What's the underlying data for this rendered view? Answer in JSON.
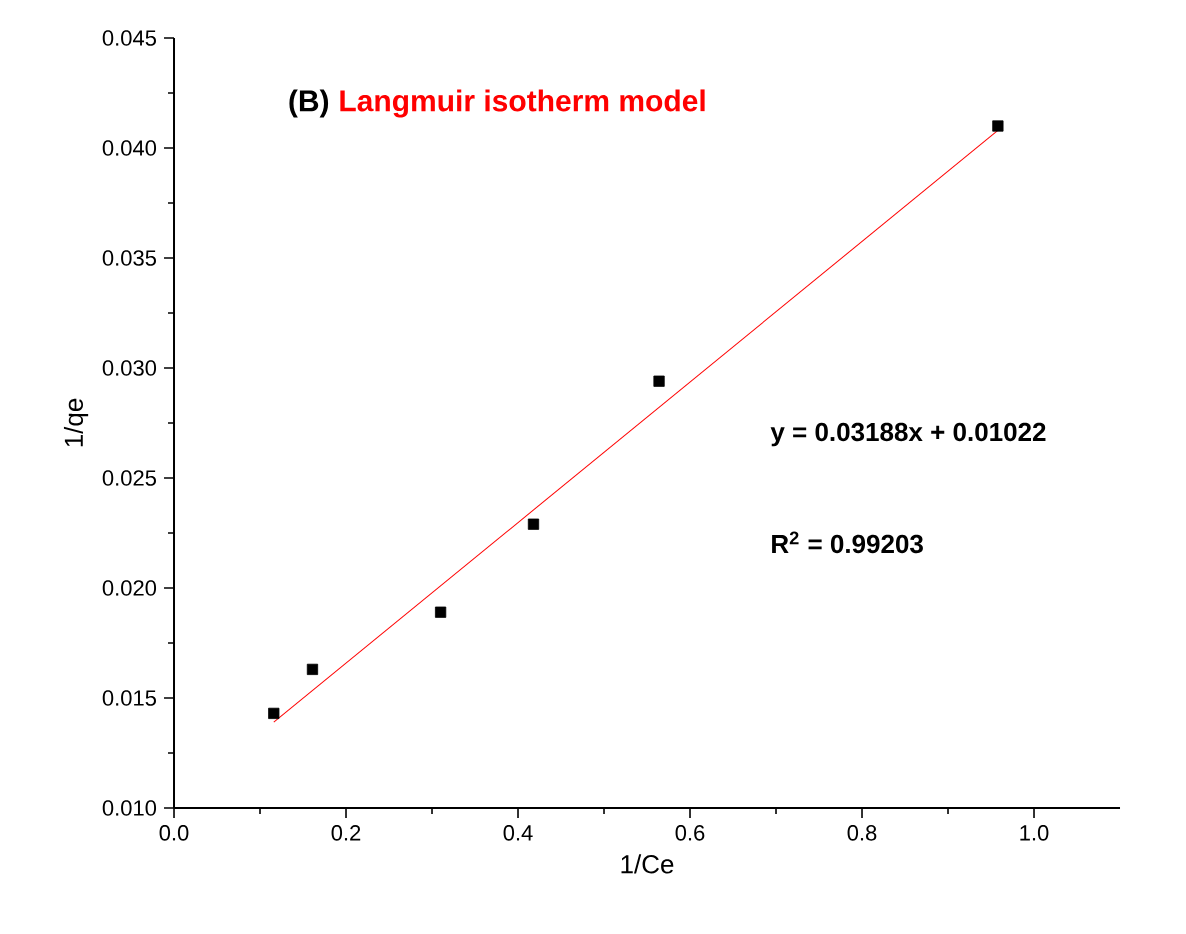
{
  "chart_data": {
    "type": "scatter",
    "xlabel": "1/Ce",
    "ylabel": "1/qe",
    "xlim": [
      0.0,
      1.1
    ],
    "xticks": [
      {
        "value": 0.0,
        "label": "0.0"
      },
      {
        "value": 0.2,
        "label": "0.2"
      },
      {
        "value": 0.4,
        "label": "0.4"
      },
      {
        "value": 0.6,
        "label": "0.6"
      },
      {
        "value": 0.8,
        "label": "0.8"
      },
      {
        "value": 1.0,
        "label": "1.0"
      }
    ],
    "ylim": [
      0.01,
      0.045
    ],
    "yticks": [
      {
        "value": 0.01,
        "label": "0.010"
      },
      {
        "value": 0.015,
        "label": "0.015"
      },
      {
        "value": 0.02,
        "label": "0.020"
      },
      {
        "value": 0.025,
        "label": "0.025"
      },
      {
        "value": 0.03,
        "label": "0.030"
      },
      {
        "value": 0.035,
        "label": "0.035"
      },
      {
        "value": 0.04,
        "label": "0.040"
      },
      {
        "value": 0.045,
        "label": "0.045"
      }
    ],
    "series": [
      {
        "type": "line",
        "marker": "none",
        "color": "#ff0000",
        "x": [
          0.116,
          0.958
        ],
        "values": [
          0.0139,
          0.0408
        ]
      },
      {
        "marker": "square",
        "color": "#000000",
        "x": [
          0.116,
          0.161,
          0.31,
          0.418,
          0.564,
          0.958
        ],
        "values": [
          0.0143,
          0.0163,
          0.0189,
          0.0229,
          0.0294,
          0.041
        ]
      }
    ],
    "annotations": [
      "(B)",
      "Langmuir isotherm model",
      "y = 0.03188x + 0.01022",
      "R$^{2}$ = 0.99203"
    ]
  }
}
